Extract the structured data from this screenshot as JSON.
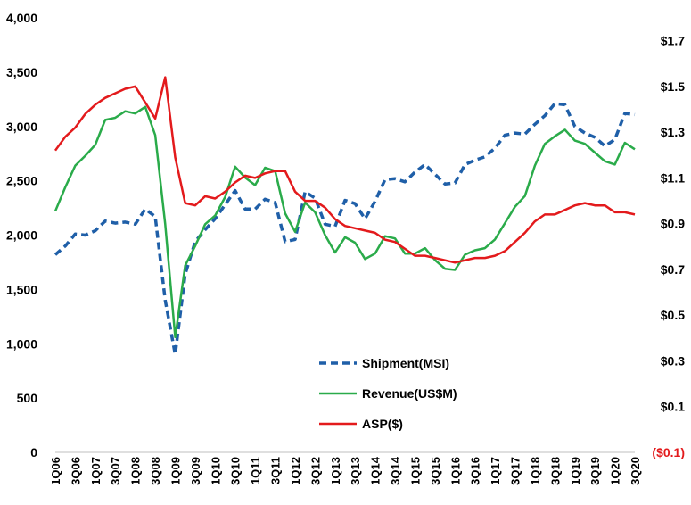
{
  "chart_data": {
    "type": "line",
    "title": "",
    "categories": [
      "1Q06",
      "2Q06",
      "3Q06",
      "4Q06",
      "1Q07",
      "2Q07",
      "3Q07",
      "4Q07",
      "1Q08",
      "2Q08",
      "3Q08",
      "4Q08",
      "1Q09",
      "2Q09",
      "3Q09",
      "4Q09",
      "1Q10",
      "2Q10",
      "3Q10",
      "4Q10",
      "1Q11",
      "2Q11",
      "3Q11",
      "4Q11",
      "1Q12",
      "2Q12",
      "3Q12",
      "4Q12",
      "1Q13",
      "2Q13",
      "3Q13",
      "4Q13",
      "1Q14",
      "2Q14",
      "3Q14",
      "4Q14",
      "1Q15",
      "2Q15",
      "3Q15",
      "4Q15",
      "1Q16",
      "2Q16",
      "3Q16",
      "4Q16",
      "1Q17",
      "2Q17",
      "3Q17",
      "4Q17",
      "1Q18",
      "2Q18",
      "3Q18",
      "4Q18",
      "1Q19",
      "2Q19",
      "3Q19",
      "4Q19",
      "1Q20",
      "2Q20",
      "3Q20"
    ],
    "x_tick_labels": [
      "1Q06",
      "3Q06",
      "1Q07",
      "3Q07",
      "1Q08",
      "3Q08",
      "1Q09",
      "3Q09",
      "1Q10",
      "3Q10",
      "1Q11",
      "3Q11",
      "1Q12",
      "3Q12",
      "1Q13",
      "3Q13",
      "1Q14",
      "3Q14",
      "1Q15",
      "3Q15",
      "1Q16",
      "3Q16",
      "1Q17",
      "3Q17",
      "1Q18",
      "3Q18",
      "1Q19",
      "3Q19",
      "1Q20",
      "3Q20"
    ],
    "y_left": {
      "range": [
        0,
        4000
      ],
      "ticks": [
        0,
        500,
        1000,
        1500,
        2000,
        2500,
        3000,
        3500,
        4000
      ],
      "tick_labels": [
        "0",
        "500",
        "1,000",
        "1,500",
        "2,000",
        "2,500",
        "3,000",
        "3,500",
        "4,000"
      ]
    },
    "y_right": {
      "range": [
        -0.1,
        1.8
      ],
      "ticks": [
        -0.1,
        0.1,
        0.3,
        0.5,
        0.7,
        0.9,
        1.1,
        1.3,
        1.5,
        1.7
      ],
      "tick_labels": [
        "($0.1)",
        "$0.1",
        "$0.3",
        "$0.5",
        "$0.7",
        "$0.9",
        "$1.1",
        "$1.3",
        "$1.5",
        "$1.7"
      ]
    },
    "grid": false,
    "legend_position": "center-bottom",
    "series": [
      {
        "name": "Shipment(MSI)",
        "axis": "left",
        "style": "dashed",
        "color": "#1f5fa8",
        "values": [
          1820,
          1900,
          2010,
          2000,
          2040,
          2130,
          2110,
          2120,
          2100,
          2240,
          2170,
          1400,
          900,
          1640,
          1940,
          2050,
          2150,
          2280,
          2410,
          2240,
          2240,
          2330,
          2300,
          1940,
          1960,
          2400,
          2340,
          2100,
          2080,
          2320,
          2290,
          2150,
          2310,
          2510,
          2520,
          2490,
          2580,
          2650,
          2560,
          2470,
          2480,
          2650,
          2690,
          2720,
          2800,
          2920,
          2940,
          2930,
          3020,
          3100,
          3210,
          3200,
          3000,
          2940,
          2900,
          2820,
          2880,
          3120,
          3110
        ]
      },
      {
        "name": "Revenue(US$M)",
        "axis": "left",
        "style": "solid",
        "color": "#2aab4a",
        "values": [
          2220,
          2440,
          2640,
          2730,
          2830,
          3060,
          3080,
          3140,
          3120,
          3180,
          2920,
          2100,
          1060,
          1720,
          1900,
          2100,
          2180,
          2350,
          2630,
          2530,
          2460,
          2620,
          2590,
          2200,
          2030,
          2300,
          2210,
          2000,
          1840,
          1980,
          1930,
          1780,
          1830,
          1990,
          1970,
          1830,
          1830,
          1880,
          1770,
          1690,
          1680,
          1820,
          1860,
          1880,
          1960,
          2110,
          2260,
          2360,
          2640,
          2840,
          2910,
          2970,
          2870,
          2840,
          2760,
          2680,
          2650,
          2850,
          2790
        ]
      },
      {
        "name": "ASP($)",
        "axis": "right",
        "style": "solid",
        "color": "#e31a1c",
        "values": [
          1.22,
          1.28,
          1.32,
          1.38,
          1.42,
          1.45,
          1.47,
          1.49,
          1.5,
          1.43,
          1.36,
          1.54,
          1.19,
          0.99,
          0.98,
          1.02,
          1.01,
          1.04,
          1.08,
          1.11,
          1.1,
          1.12,
          1.13,
          1.13,
          1.04,
          1.0,
          1.0,
          0.97,
          0.92,
          0.89,
          0.88,
          0.87,
          0.86,
          0.83,
          0.82,
          0.79,
          0.76,
          0.76,
          0.75,
          0.74,
          0.73,
          0.74,
          0.75,
          0.75,
          0.76,
          0.78,
          0.82,
          0.86,
          0.91,
          0.94,
          0.94,
          0.96,
          0.98,
          0.99,
          0.98,
          0.98,
          0.95,
          0.95,
          0.94
        ]
      }
    ]
  }
}
